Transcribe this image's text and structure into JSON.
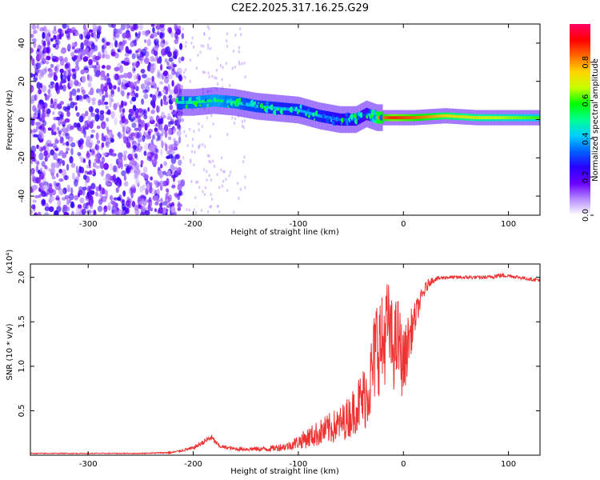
{
  "title": "C2E2.2025.317.16.25.G29",
  "chart_data": [
    {
      "type": "heatmap",
      "title": "C2E2.2025.317.16.25.G29",
      "xlabel": "Height of straight line (km)",
      "ylabel": "Frequency (Hz)",
      "xlim": [
        -355,
        130
      ],
      "ylim": [
        -50,
        50
      ],
      "x_ticks": [
        -300,
        -200,
        -100,
        0,
        100
      ],
      "y_ticks": [
        -40,
        -20,
        0,
        20,
        40
      ],
      "colorbar": {
        "label": "Normalized spectral amplitude",
        "range": [
          0,
          1
        ],
        "ticks": [
          "0.0",
          "0.2",
          "0.4",
          "0.6",
          "0.8"
        ],
        "colors": [
          "#ffffff",
          "#b58cff",
          "#6a00ff",
          "#2a00ff",
          "#0060ff",
          "#00d0ff",
          "#00ff90",
          "#00ff00",
          "#c8ff00",
          "#ffd400",
          "#ff6a00",
          "#ff0000",
          "#ff0066"
        ]
      },
      "noise_region": {
        "x": [
          -355,
          -210
        ],
        "y": [
          -50,
          50
        ],
        "level": 0.15
      },
      "signal_trace": [
        {
          "x": -215,
          "y": 9,
          "amp": 0.45
        },
        {
          "x": -200,
          "y": 9,
          "amp": 0.5
        },
        {
          "x": -180,
          "y": 10,
          "amp": 0.55
        },
        {
          "x": -160,
          "y": 9,
          "amp": 0.5
        },
        {
          "x": -150,
          "y": 8,
          "amp": 0.45
        },
        {
          "x": -140,
          "y": 7,
          "amp": 0.45
        },
        {
          "x": -120,
          "y": 6,
          "amp": 0.4
        },
        {
          "x": -100,
          "y": 5,
          "amp": 0.4
        },
        {
          "x": -80,
          "y": 2,
          "amp": 0.4
        },
        {
          "x": -60,
          "y": 0,
          "amp": 0.35
        },
        {
          "x": -45,
          "y": 0,
          "amp": 0.35
        },
        {
          "x": -35,
          "y": 3,
          "amp": 0.3
        },
        {
          "x": -25,
          "y": 1,
          "amp": 0.8
        },
        {
          "x": -10,
          "y": 1,
          "amp": 0.9
        },
        {
          "x": 10,
          "y": 1,
          "amp": 0.85
        },
        {
          "x": 40,
          "y": 2,
          "amp": 0.75
        },
        {
          "x": 70,
          "y": 1,
          "amp": 0.7
        },
        {
          "x": 100,
          "y": 1,
          "amp": 0.65
        },
        {
          "x": 130,
          "y": 1,
          "amp": 0.6
        }
      ]
    },
    {
      "type": "line",
      "xlabel": "Height of straight line (km)",
      "ylabel": "SNR (10 * v/v)",
      "y_multiplier": "(x10⁴)",
      "xlim": [
        -355,
        130
      ],
      "ylim": [
        0,
        2.15
      ],
      "x_ticks": [
        -300,
        -200,
        -100,
        0,
        100
      ],
      "y_ticks": [
        "0.5",
        "1.0",
        "1.5",
        "2.0"
      ],
      "series": [
        {
          "color": "#ee3333",
          "x": [
            -355,
            -300,
            -250,
            -220,
            -200,
            -190,
            -183,
            -175,
            -160,
            -130,
            -110,
            -100,
            -90,
            -80,
            -70,
            -60,
            -50,
            -45,
            -40,
            -35,
            -30,
            -25,
            -20,
            -15,
            -10,
            -5,
            0,
            5,
            10,
            15,
            20,
            25,
            30,
            40,
            50,
            60,
            70,
            80,
            90,
            100,
            110,
            120,
            130
          ],
          "y": [
            0.02,
            0.02,
            0.02,
            0.03,
            0.08,
            0.15,
            0.2,
            0.1,
            0.07,
            0.07,
            0.1,
            0.15,
            0.2,
            0.25,
            0.3,
            0.35,
            0.45,
            0.55,
            0.6,
            0.7,
            0.9,
            1.3,
            1.2,
            1.5,
            1.2,
            1.3,
            1.0,
            1.3,
            1.5,
            1.7,
            1.85,
            1.95,
            1.98,
            2.0,
            2.0,
            2.0,
            2.0,
            2.0,
            2.02,
            2.02,
            2.0,
            1.98,
            1.97
          ],
          "noise_amplitude": [
            0.005,
            0.005,
            0.005,
            0.01,
            0.02,
            0.03,
            0.04,
            0.02,
            0.02,
            0.03,
            0.05,
            0.08,
            0.12,
            0.15,
            0.18,
            0.2,
            0.25,
            0.3,
            0.35,
            0.4,
            0.5,
            0.6,
            0.6,
            0.5,
            0.5,
            0.5,
            0.4,
            0.3,
            0.2,
            0.12,
            0.08,
            0.05,
            0.03,
            0.02,
            0.02,
            0.02,
            0.02,
            0.02,
            0.03,
            0.02,
            0.02,
            0.02,
            0.02
          ]
        }
      ]
    }
  ]
}
